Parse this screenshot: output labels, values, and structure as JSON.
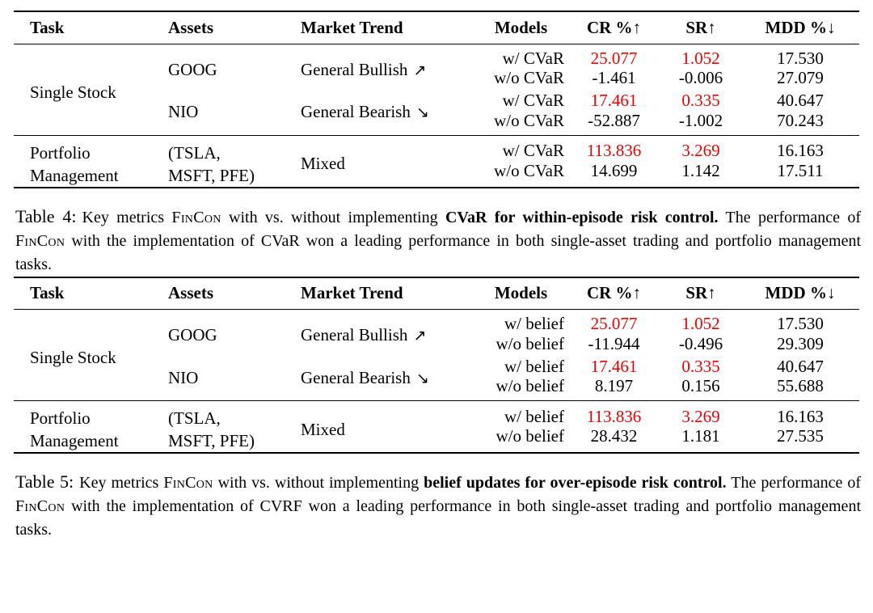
{
  "colors": {
    "highlight": "#ee0000",
    "text": "#000000",
    "background": "#ffffff"
  },
  "table4": {
    "headers": [
      "Task",
      "Assets",
      "Market Trend",
      "Models",
      "CR %↑",
      "SR↑",
      "MDD %↓"
    ],
    "task_single": "Single Stock",
    "task_portfolio_line1": "Portfolio",
    "task_portfolio_line2": "Management",
    "asset1": "GOOG",
    "asset2": "NIO",
    "asset3_line1": "(TSLA,",
    "asset3_line2": "MSFT, PFE)",
    "trend1": "General Bullish",
    "trend1_arrow": "↗",
    "trend2": "General Bearish",
    "trend2_arrow": "↘",
    "trend3": "Mixed",
    "rows": [
      {
        "model": "w/ CVaR",
        "cr": "25.077",
        "sr": "1.052",
        "mdd": "17.530"
      },
      {
        "model": "w/o CVaR",
        "cr": "-1.461",
        "sr": "-0.006",
        "mdd": "27.079"
      },
      {
        "model": "w/ CVaR",
        "cr": "17.461",
        "sr": "0.335",
        "mdd": "40.647"
      },
      {
        "model": "w/o CVaR",
        "cr": "-52.887",
        "sr": "-1.002",
        "mdd": "70.243"
      },
      {
        "model": "w/ CVaR",
        "cr": "113.836",
        "sr": "3.269",
        "mdd": "16.163"
      },
      {
        "model": "w/o CVaR",
        "cr": "14.699",
        "sr": "1.142",
        "mdd": "17.511"
      }
    ]
  },
  "caption4": {
    "label": "Table 4:",
    "s1": "Key metrics ",
    "f1": "FinCon",
    "s2": " with vs. without implementing ",
    "b1": "CVaR for within-episode risk control.",
    "s3": " The performance of ",
    "f2": "FinCon",
    "s4": " with the implementation of CVaR won a leading performance in both single-asset trading and portfolio management tasks."
  },
  "table5": {
    "headers": [
      "Task",
      "Assets",
      "Market Trend",
      "Models",
      "CR %↑",
      "SR↑",
      "MDD %↓"
    ],
    "task_single": "Single Stock",
    "task_portfolio_line1": "Portfolio",
    "task_portfolio_line2": "Management",
    "asset1": "GOOG",
    "asset2": "NIO",
    "asset3_line1": "(TSLA,",
    "asset3_line2": "MSFT, PFE)",
    "trend1": "General Bullish",
    "trend1_arrow": "↗",
    "trend2": "General Bearish",
    "trend2_arrow": "↘",
    "trend3": "Mixed",
    "rows": [
      {
        "model": "w/ belief",
        "cr": "25.077",
        "sr": "1.052",
        "mdd": "17.530"
      },
      {
        "model": "w/o belief",
        "cr": "-11.944",
        "sr": "-0.496",
        "mdd": "29.309"
      },
      {
        "model": "w/ belief",
        "cr": "17.461",
        "sr": "0.335",
        "mdd": "40.647"
      },
      {
        "model": "w/o belief",
        "cr": "8.197",
        "sr": "0.156",
        "mdd": "55.688"
      },
      {
        "model": "w/ belief",
        "cr": "113.836",
        "sr": "3.269",
        "mdd": "16.163"
      },
      {
        "model": "w/o belief",
        "cr": "28.432",
        "sr": "1.181",
        "mdd": "27.535"
      }
    ]
  },
  "caption5": {
    "label": "Table 5:",
    "s1": "Key metrics ",
    "f1": "FinCon",
    "s2": " with vs. without implementing ",
    "b1": "belief updates for over-episode risk control.",
    "s3": " The performance of ",
    "f2": "FinCon",
    "s4": " with the implementation of CVRF won a leading performance in both single-asset trading and portfolio management tasks."
  }
}
